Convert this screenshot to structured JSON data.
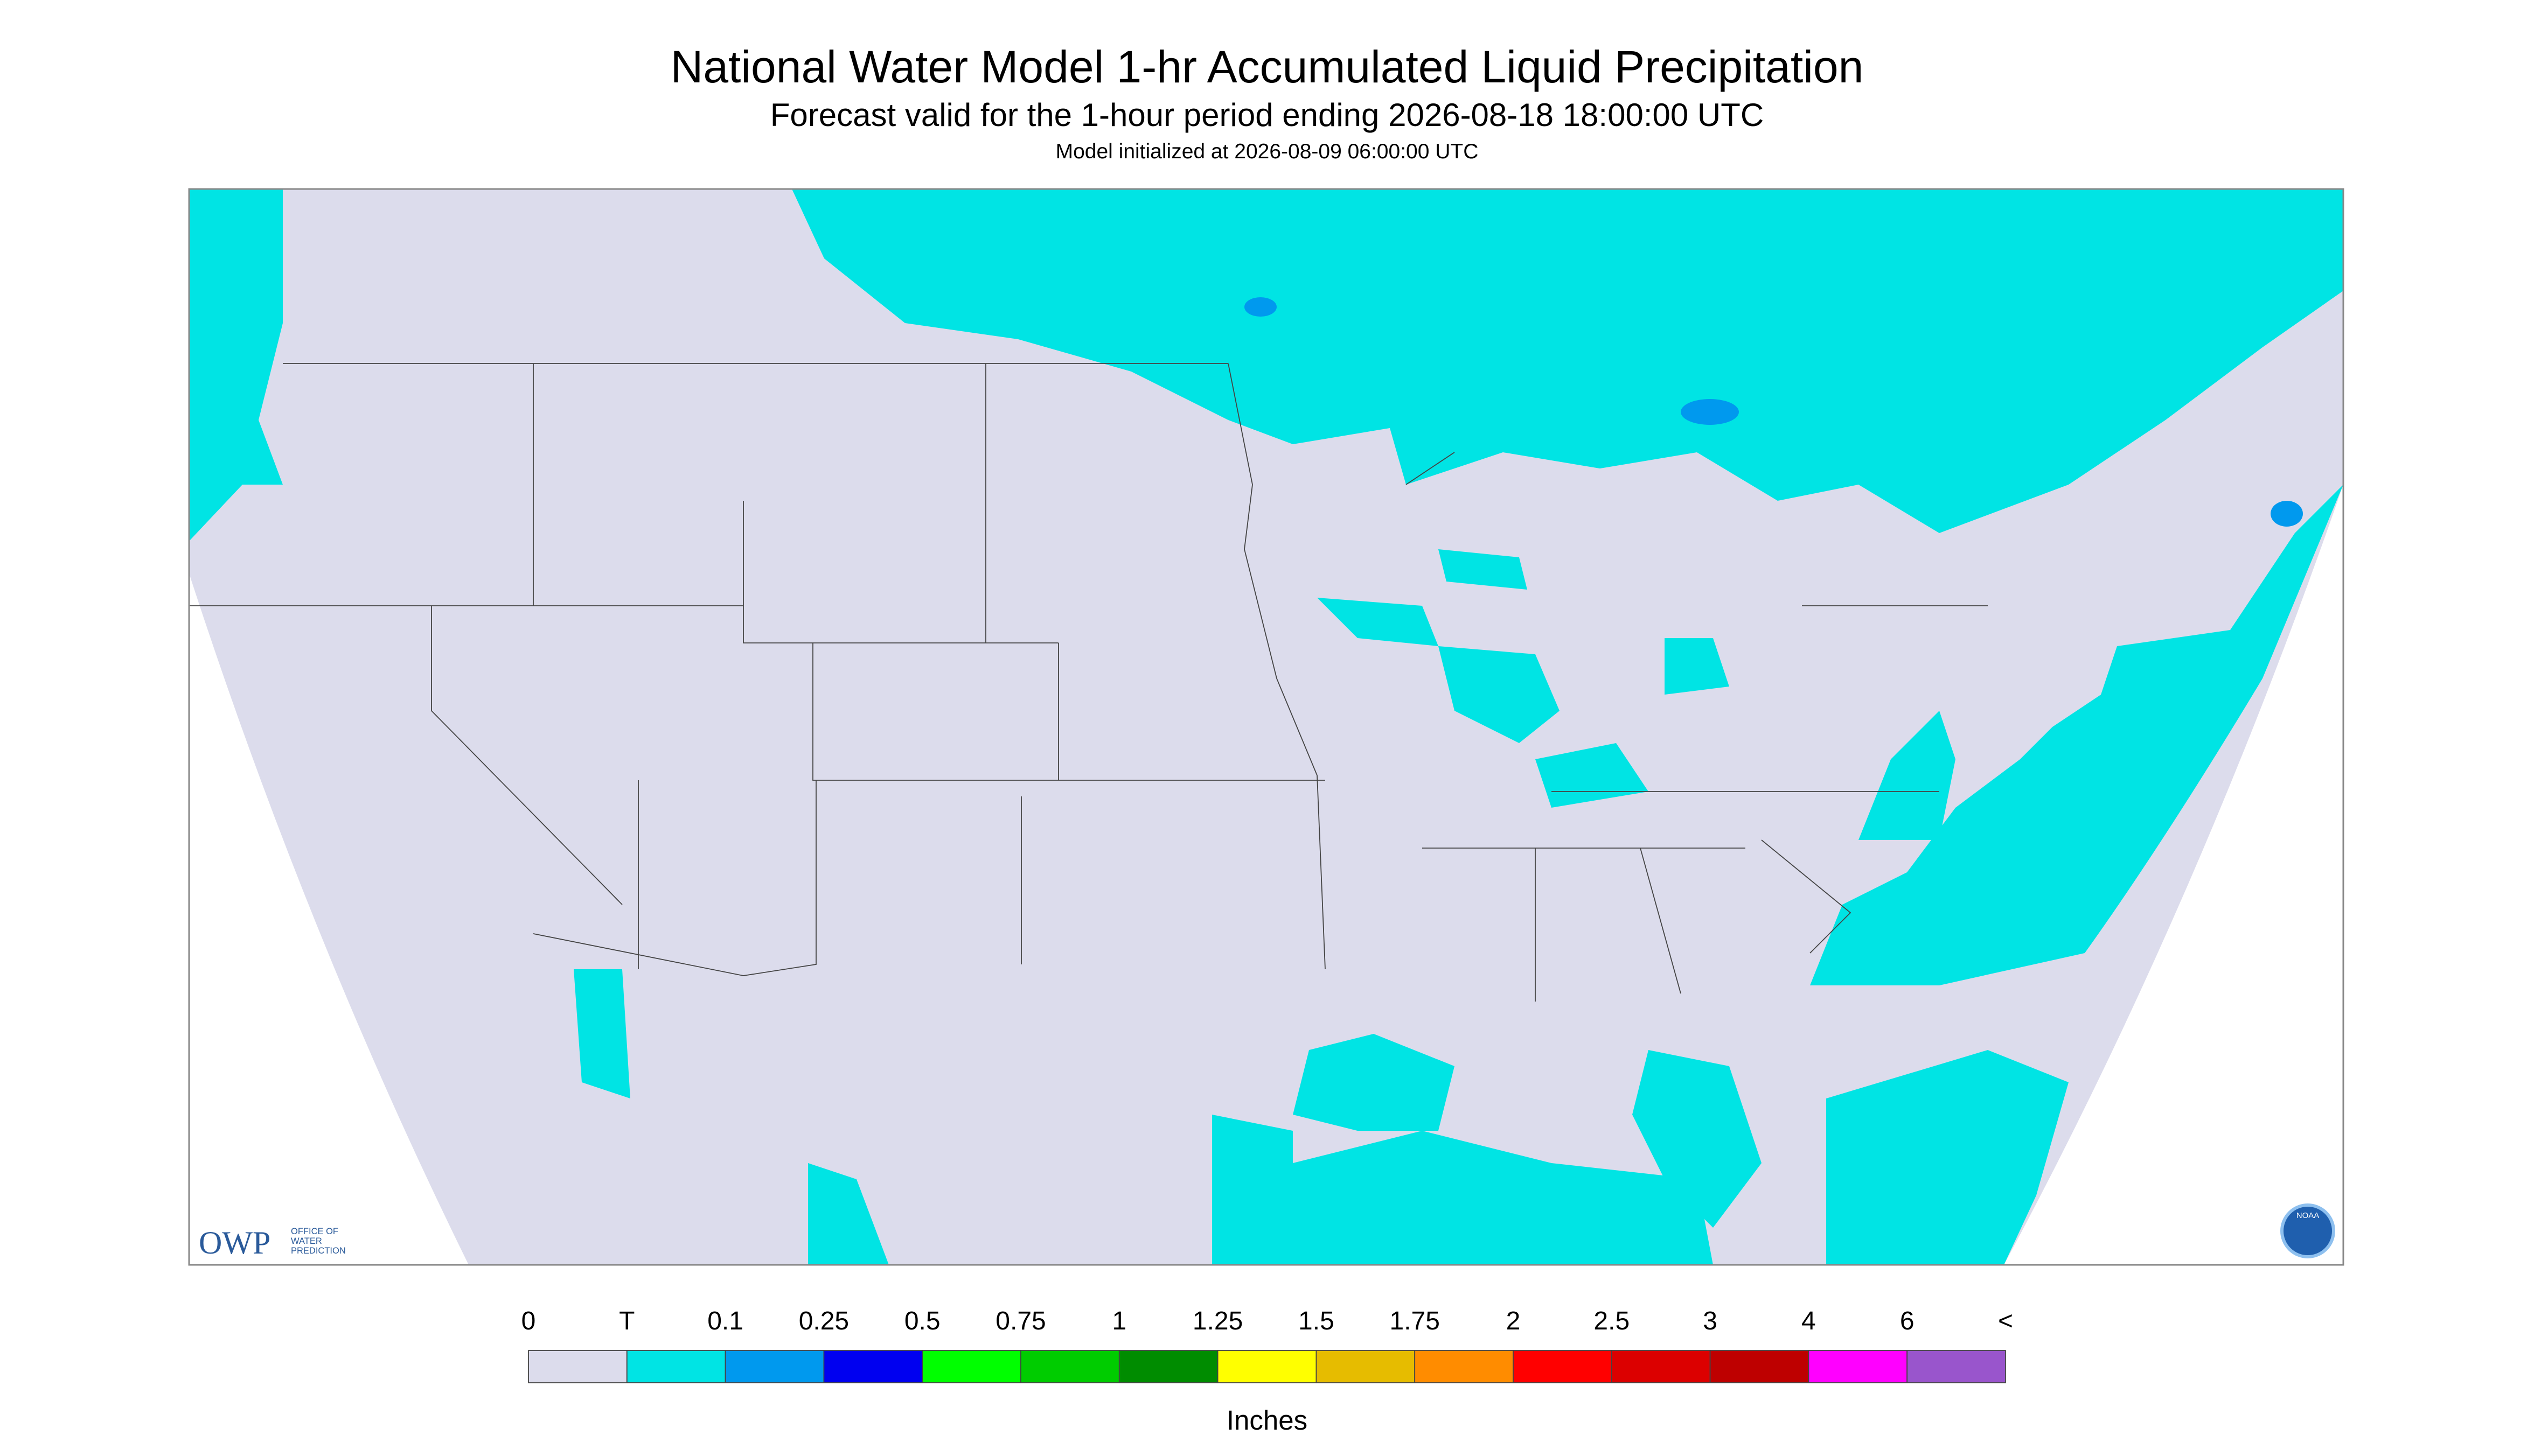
{
  "header": {
    "title": "National Water Model 1-hr Accumulated Liquid Precipitation",
    "subtitle": "Forecast valid for the 1-hour period ending 2026-08-18 18:00:00 UTC",
    "note": "Model initialized at 2026-08-09 06:00:00 UTC"
  },
  "logos": {
    "owp": "OWP",
    "owp_text": [
      "OFFICE OF",
      "WATER",
      "PREDICTION"
    ],
    "noaa": "NOAA"
  },
  "legend": {
    "labels": [
      "0",
      "T",
      "0.1",
      "0.25",
      "0.5",
      "0.75",
      "1",
      "1.25",
      "1.5",
      "1.75",
      "2",
      "2.5",
      "3",
      "4",
      "6",
      "<"
    ],
    "colors": [
      "#dcdcec",
      "#00e4e4",
      "#0099ee",
      "#0000f0",
      "#00ff00",
      "#00cc00",
      "#008c00",
      "#ffff00",
      "#e6bc00",
      "#ff8c00",
      "#ff0000",
      "#dc0000",
      "#be0000",
      "#ff00ff",
      "#9955cc"
    ],
    "unit": "Inches"
  }
}
